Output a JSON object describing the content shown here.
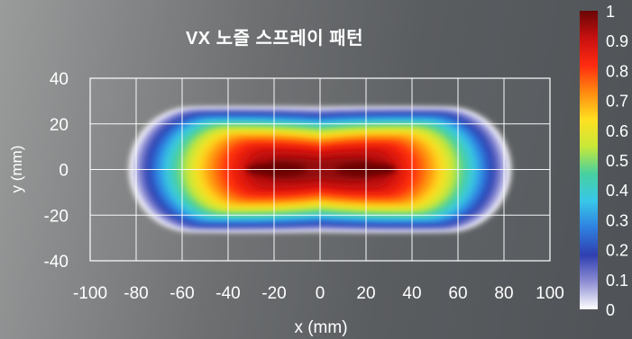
{
  "chart_data": {
    "type": "heatmap",
    "title": "VX 노즐 스프레이 패턴",
    "xlabel": "x (mm)",
    "ylabel": "y (mm)",
    "xlim": [
      -100,
      100
    ],
    "ylim": [
      -40,
      40
    ],
    "x_ticks": [
      -100,
      -80,
      -60,
      -40,
      -20,
      0,
      20,
      40,
      60,
      80,
      100
    ],
    "y_ticks": [
      40,
      20,
      0,
      -20,
      -40
    ],
    "grid": true,
    "colorbar": {
      "ticks": [
        1,
        0.9,
        0.8,
        0.7,
        0.6,
        0.5,
        0.4,
        0.3,
        0.2,
        0.1,
        0
      ],
      "tick_labels": [
        "1",
        "0.9",
        "0.8",
        "0.7",
        "0.6",
        "0.5",
        "0.4",
        "0.3",
        "0.2",
        "0.1",
        "0"
      ],
      "range": [
        0,
        1
      ],
      "colormap": [
        "#ffffff",
        "#8f8fd4",
        "#2f3fb0",
        "#2f7fe0",
        "#38c8e8",
        "#48d0a0",
        "#c8e838",
        "#ffe020",
        "#ff8a10",
        "#ff2a10",
        "#c81010",
        "#6a0606"
      ]
    },
    "spray_pattern": {
      "x_extent": [
        -83,
        83
      ],
      "y_extent": [
        -27,
        27
      ],
      "peaks": [
        {
          "x": -19,
          "y": 0,
          "value": 1.0
        },
        {
          "x": 20,
          "y": 0,
          "value": 1.0
        }
      ]
    }
  }
}
